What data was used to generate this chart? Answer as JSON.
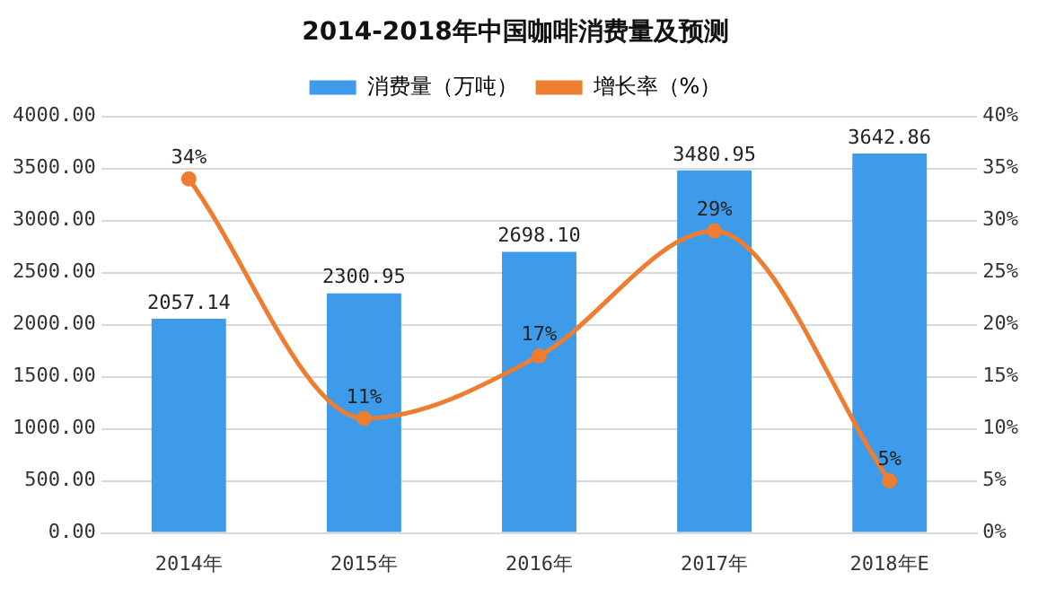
{
  "chart_data": {
    "type": "bar",
    "title": "2014-2018年中国咖啡消费量及预测",
    "categories": [
      "2014年",
      "2015年",
      "2016年",
      "2017年",
      "2018年E"
    ],
    "series": [
      {
        "name": "消费量（万吨）",
        "color": "#3d9bea",
        "values": [
          2057.14,
          2300.95,
          2698.1,
          3480.95,
          3642.86
        ],
        "value_labels": [
          "2057.14",
          "2300.95",
          "2698.10",
          "3480.95",
          "3642.86"
        ]
      },
      {
        "name": "增长率（%）",
        "type": "line",
        "axis": "y2",
        "color": "#ed7d31",
        "marker": "circle",
        "values": [
          34,
          11,
          17,
          29,
          5
        ],
        "value_labels": [
          "34%",
          "11%",
          "17%",
          "29%",
          "5%"
        ]
      }
    ],
    "ylim": [
      0,
      4000
    ],
    "yticks": [
      {
        "value": 0,
        "label": "0.00"
      },
      {
        "value": 500,
        "label": "500.00"
      },
      {
        "value": 1000,
        "label": "1000.00"
      },
      {
        "value": 1500,
        "label": "1500.00"
      },
      {
        "value": 2000,
        "label": "2000.00"
      },
      {
        "value": 2500,
        "label": "2500.00"
      },
      {
        "value": 3000,
        "label": "3000.00"
      },
      {
        "value": 3500,
        "label": "3500.00"
      },
      {
        "value": 4000,
        "label": "4000.00"
      }
    ],
    "y2lim": [
      0,
      40
    ],
    "y2ticks": [
      {
        "value": 0,
        "label": "0%"
      },
      {
        "value": 5,
        "label": "5%"
      },
      {
        "value": 10,
        "label": "10%"
      },
      {
        "value": 15,
        "label": "15%"
      },
      {
        "value": 20,
        "label": "20%"
      },
      {
        "value": 25,
        "label": "25%"
      },
      {
        "value": 30,
        "label": "30%"
      },
      {
        "value": 35,
        "label": "35%"
      },
      {
        "value": 40,
        "label": "40%"
      }
    ],
    "grid": "y",
    "legend": "top"
  }
}
